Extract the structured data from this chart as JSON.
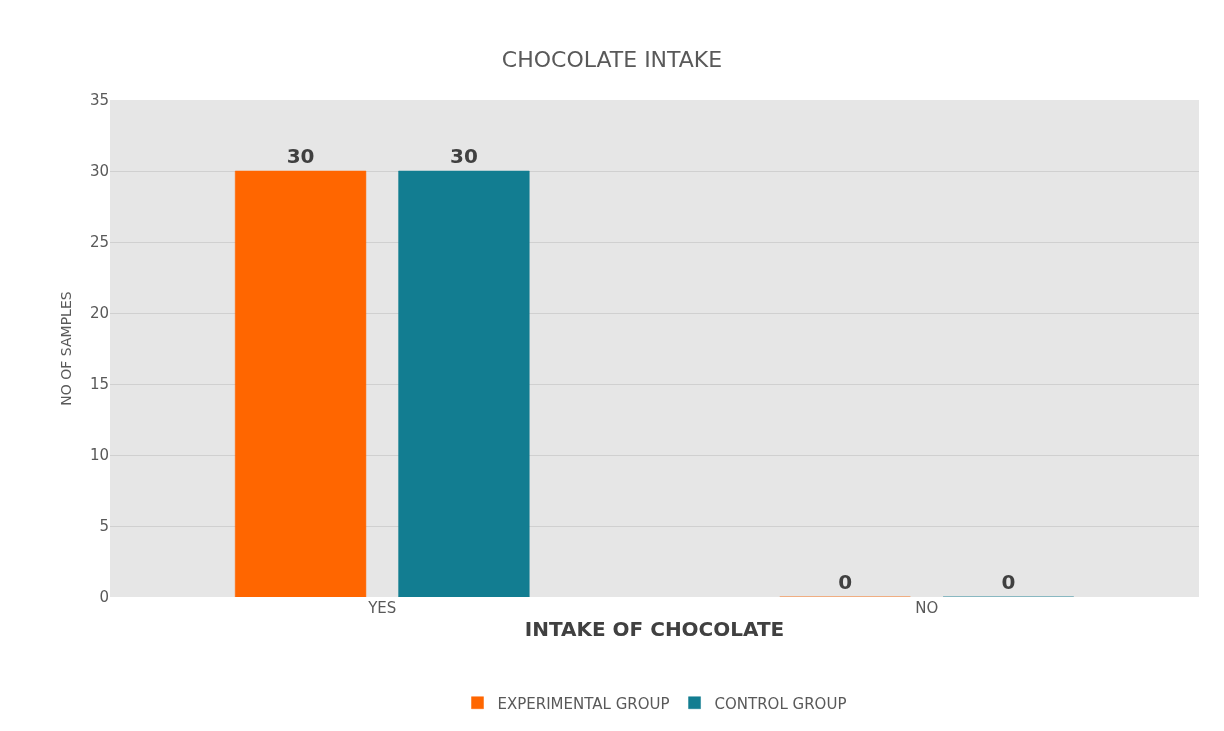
{
  "chart_data": {
    "type": "bar",
    "title": "CHOCOLATE INTAKE",
    "xlabel": "INTAKE OF CHOCOLATE",
    "ylabel": "NO OF SAMPLES",
    "categories": [
      "YES",
      "NO"
    ],
    "series": [
      {
        "name": "EXPERIMENTAL GROUP",
        "color": "#ff6600",
        "values": [
          30,
          0
        ]
      },
      {
        "name": "CONTROL GROUP",
        "color": "#127d91",
        "values": [
          30,
          0
        ]
      }
    ],
    "ylim": [
      0,
      35
    ],
    "yticks": [
      0,
      5,
      10,
      15,
      20,
      25,
      30,
      35
    ],
    "grid": "y",
    "legend": "bottom",
    "data_labels": true
  }
}
